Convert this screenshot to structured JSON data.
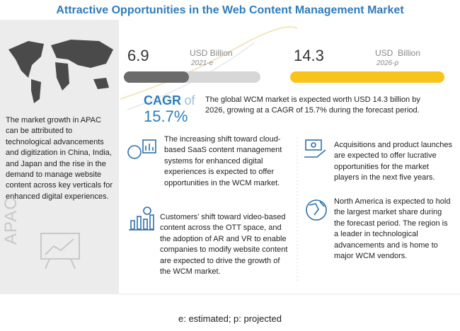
{
  "title": "Attractive Opportunities in the Web Content Management Market",
  "left_panel": {
    "text": "The market growth in APAC can be attributed to technological advancements and digitization in China, India, and Japan and the rise in the demand to manage website content across key verticals for enhanced digital experiences.",
    "region": "APAC"
  },
  "stats": [
    {
      "value": 6.9,
      "unit": "USD Billion",
      "year": "2021-e"
    },
    {
      "value": 14.3,
      "unit": "USD  Billion",
      "year": "2026-p"
    }
  ],
  "cagr": {
    "label": "CAGR",
    "connector": "of",
    "value": "15.7%"
  },
  "summary": "The global WCM market is expected worth USD 14.3 billion by 2026, growing at a CAGR of 15.7% during the forecast period.",
  "highlights": [
    "The increasing shift toward cloud-based SaaS content management systems for enhanced digital experiences is expected to offer opportunities in the WCM market.",
    "Customers’ shift toward video-based content across the OTT space, and the adoption of AR and VR to enable companies to modify website content are expected to drive the growth of the WCM market.",
    "Acquisitions and product launches are expected to offer lucrative opportunities for the market players in the next five years.",
    "North America is expected to hold the largest market share during the forecast period. The region is a leader in technological advancements and is home to major WCM vendors."
  ],
  "footnote": "e: estimated; p: projected"
}
